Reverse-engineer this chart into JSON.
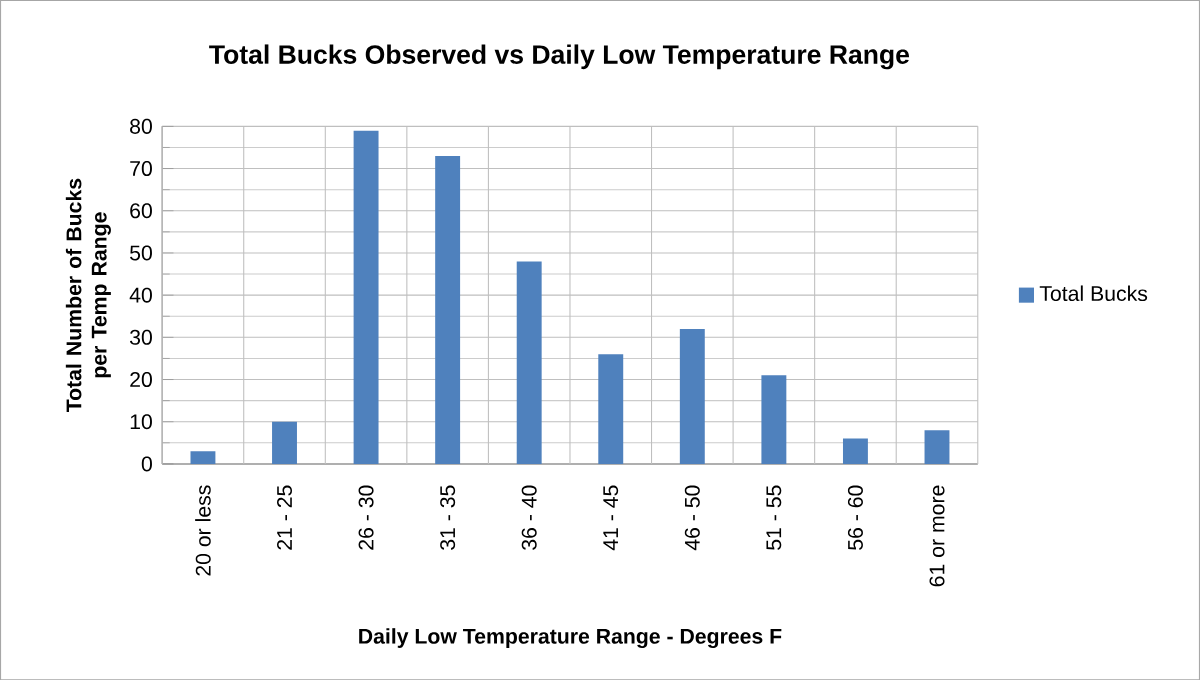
{
  "chart_data": {
    "type": "bar",
    "title": "Total Bucks Observed vs Daily Low Temperature Range",
    "xlabel": "Daily Low Temperature Range - Degrees F",
    "ylabel": "Total Number of Bucks per Temp Range",
    "categories": [
      "20 or less",
      "21 - 25",
      "26 - 30",
      "31 - 35",
      "36 - 40",
      "41 - 45",
      "46 - 50",
      "51 - 55",
      "56 - 60",
      "61 or more"
    ],
    "series": [
      {
        "name": "Total Bucks",
        "color": "#4f81bd",
        "values": [
          3,
          10,
          79,
          73,
          48,
          26,
          32,
          21,
          6,
          8
        ]
      }
    ],
    "ylim": [
      0,
      80
    ],
    "yticks": [
      0,
      10,
      20,
      30,
      40,
      50,
      60,
      70,
      80
    ],
    "grid": true,
    "legend": "right"
  }
}
